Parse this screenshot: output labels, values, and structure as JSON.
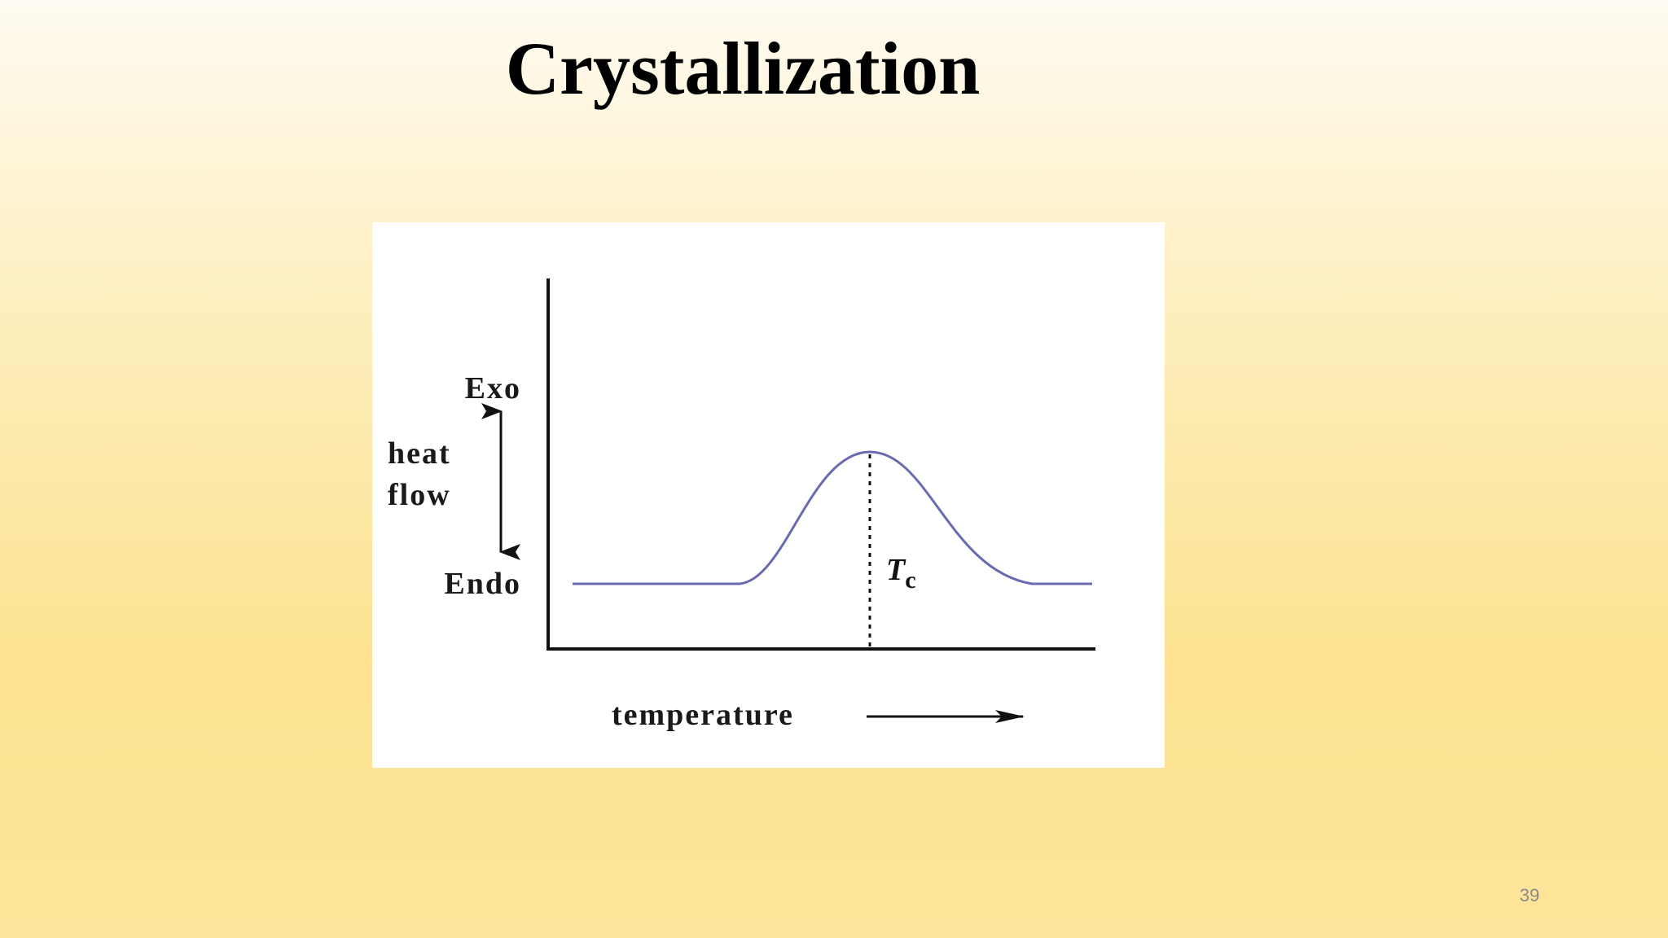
{
  "slide": {
    "title": "Crystallization",
    "page_number": "39"
  },
  "diagram": {
    "exo_label": "Exo",
    "heat_flow_lines": [
      "heat",
      "flow"
    ],
    "endo_label": "Endo",
    "x_axis_label": "temperature",
    "peak_label": {
      "symbol": "T",
      "subscript": "c"
    }
  }
}
